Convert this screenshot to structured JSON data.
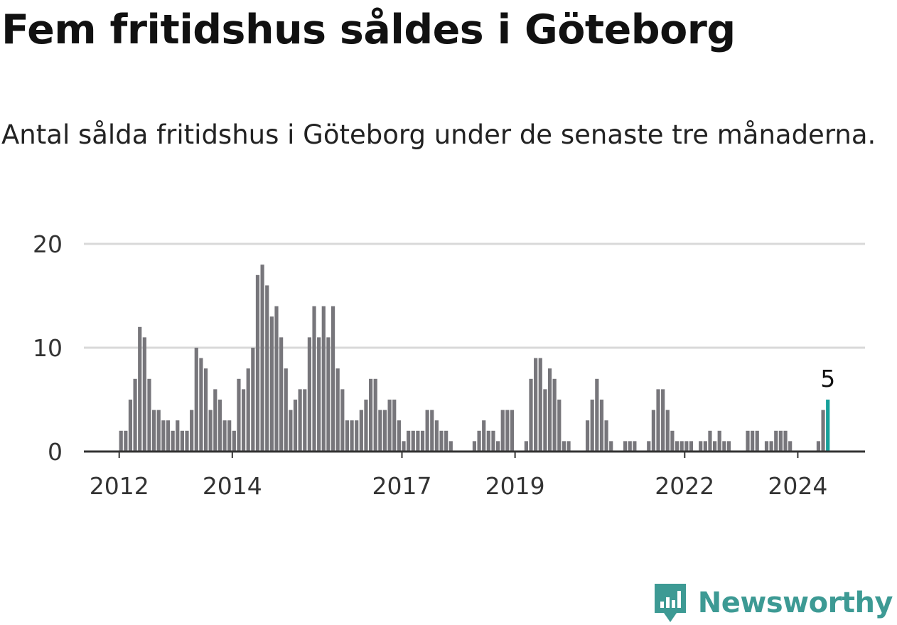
{
  "title": "Fem fritidshus såldes i Göteborg",
  "subtitle": "Antal sålda fritidshus i Göteborg under de senaste tre månaderna.",
  "brand": {
    "name": "Newsworthy",
    "icon": "newsworthy-logo-icon",
    "color": "#3d9a94"
  },
  "colors": {
    "bar": "#77767b",
    "highlight": "#16a09a",
    "grid": "#d9d9d9",
    "axis": "#333333"
  },
  "chart_data": {
    "type": "bar",
    "title": "Fem fritidshus såldes i Göteborg",
    "xlabel": "",
    "ylabel": "",
    "ylim": [
      0,
      20
    ],
    "yticks": [
      0,
      10,
      20
    ],
    "grid": true,
    "x_start": {
      "year": 2012,
      "month": 1
    },
    "xtick_labels": [
      {
        "label": "2012",
        "index": 0
      },
      {
        "label": "2014",
        "index": 24
      },
      {
        "label": "2017",
        "index": 60
      },
      {
        "label": "2019",
        "index": 84
      },
      {
        "label": "2022",
        "index": 120
      },
      {
        "label": "2024",
        "index": 144
      }
    ],
    "values": [
      2,
      2,
      5,
      7,
      12,
      11,
      7,
      4,
      4,
      3,
      3,
      2,
      3,
      2,
      2,
      4,
      10,
      9,
      8,
      4,
      6,
      5,
      3,
      3,
      2,
      7,
      6,
      8,
      10,
      17,
      18,
      16,
      13,
      14,
      11,
      8,
      4,
      5,
      6,
      6,
      11,
      14,
      11,
      14,
      11,
      14,
      8,
      6,
      3,
      3,
      3,
      4,
      5,
      7,
      7,
      4,
      4,
      5,
      5,
      3,
      1,
      2,
      2,
      2,
      2,
      4,
      4,
      3,
      2,
      2,
      1,
      0,
      0,
      0,
      0,
      1,
      2,
      3,
      2,
      2,
      1,
      4,
      4,
      4,
      0,
      0,
      1,
      7,
      9,
      9,
      6,
      8,
      7,
      5,
      1,
      1,
      0,
      0,
      0,
      3,
      5,
      7,
      5,
      3,
      1,
      0,
      0,
      1,
      1,
      1,
      0,
      0,
      1,
      4,
      6,
      6,
      4,
      2,
      1,
      1,
      1,
      1,
      0,
      1,
      1,
      2,
      1,
      2,
      1,
      1,
      0,
      0,
      0,
      2,
      2,
      2,
      0,
      1,
      1,
      2,
      2,
      2,
      1,
      0,
      0,
      0,
      0,
      0,
      1,
      4,
      5
    ],
    "highlight_index": 150,
    "highlight_label": "5"
  }
}
